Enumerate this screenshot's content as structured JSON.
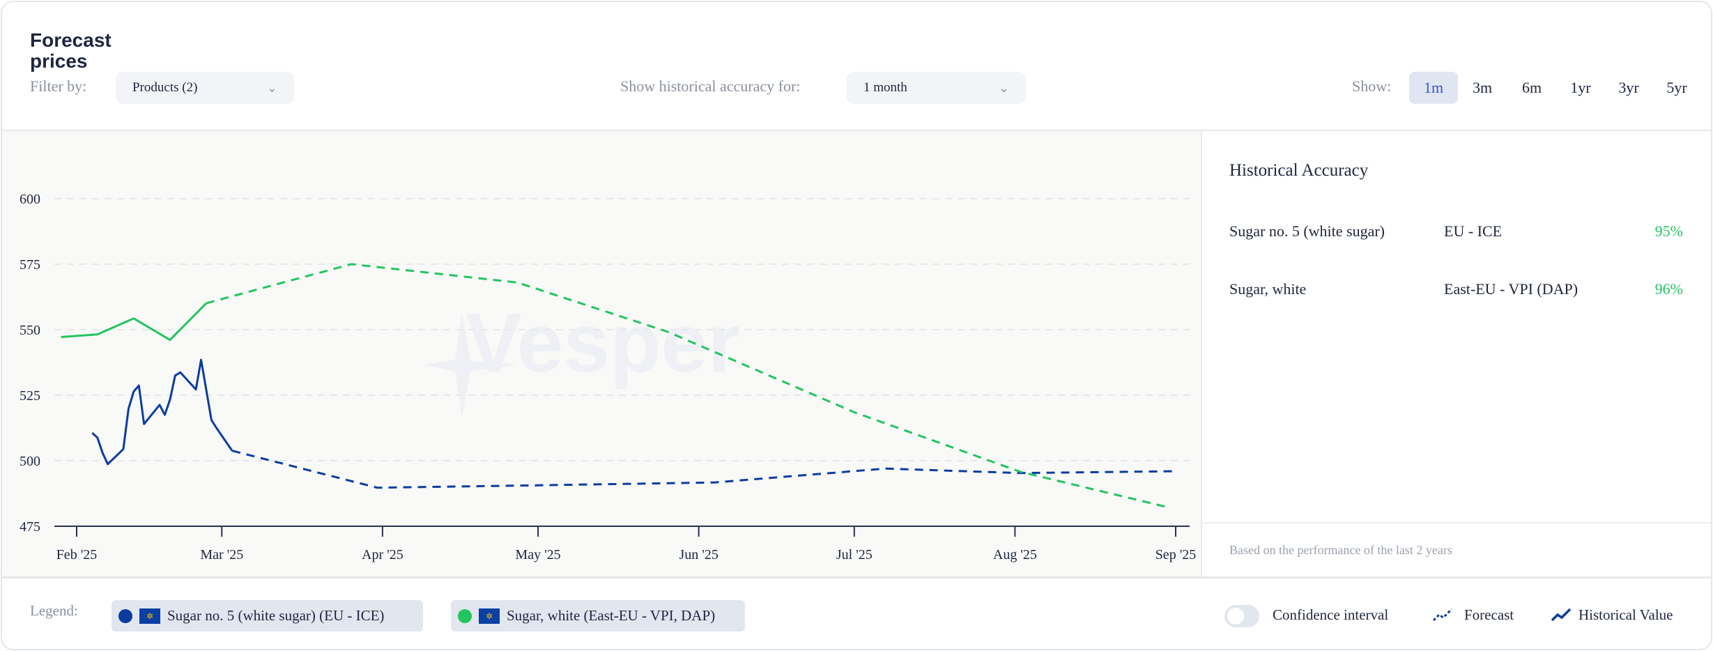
{
  "header": {
    "title": "Forecast prices",
    "filter_label": "Filter by:",
    "filter_value": "Products (2)",
    "accuracy_label": "Show historical accuracy for:",
    "accuracy_value": "1 month",
    "show_label": "Show:",
    "ranges": [
      {
        "label": "1m",
        "active": true
      },
      {
        "label": "3m",
        "active": false
      },
      {
        "label": "6m",
        "active": false
      },
      {
        "label": "1yr",
        "active": false
      },
      {
        "label": "3yr",
        "active": false
      },
      {
        "label": "5yr",
        "active": false
      }
    ]
  },
  "accuracy_panel": {
    "title": "Historical Accuracy",
    "rows": [
      {
        "product": "Sugar no. 5 (white sugar)",
        "market": "EU - ICE",
        "accuracy": "95%"
      },
      {
        "product": "Sugar, white",
        "market": "East-EU - VPI (DAP)",
        "accuracy": "96%"
      }
    ],
    "footnote": "Based on the performance of the last 2 years"
  },
  "legend": {
    "label": "Legend:",
    "items": [
      {
        "label": "Sugar no. 5 (white sugar) (EU - ICE)",
        "color": "#0a3d9e"
      },
      {
        "label": "Sugar, white (East-EU - VPI, DAP)",
        "color": "#22c55e"
      }
    ],
    "confidence_label": "Confidence interval",
    "confidence_on": false,
    "forecast_label": "Forecast",
    "historical_label": "Historical Value"
  },
  "watermark": "Vesper",
  "chart_data": {
    "type": "line",
    "x_unit": "days since 2025-02-01",
    "xlim": [
      0,
      212
    ],
    "ylim": [
      475,
      600
    ],
    "yticks": [
      "600",
      "575",
      "550",
      "525",
      "500",
      "475"
    ],
    "ytick_values": [
      600,
      575,
      550,
      525,
      500,
      475
    ],
    "xticks": [
      {
        "label": "Feb '25",
        "day": 0
      },
      {
        "label": "Mar '25",
        "day": 28
      },
      {
        "label": "Apr '25",
        "day": 59
      },
      {
        "label": "May '25",
        "day": 89
      },
      {
        "label": "Jun '25",
        "day": 120
      },
      {
        "label": "Jul '25",
        "day": 150
      },
      {
        "label": "Aug '25",
        "day": 181
      },
      {
        "label": "Sep '25",
        "day": 212
      }
    ],
    "grid": true,
    "series": [
      {
        "name": "Sugar no. 5 (white sugar) (EU - ICE)",
        "color": "#0a3d9e",
        "historical": [
          [
            3,
            510.6
          ],
          [
            4,
            508.8
          ],
          [
            5,
            503
          ],
          [
            6,
            498.7
          ],
          [
            9,
            504.4
          ],
          [
            10,
            519.8
          ],
          [
            11,
            526.4
          ],
          [
            12,
            528.7
          ],
          [
            13,
            514
          ],
          [
            16,
            521.3
          ],
          [
            17,
            517.5
          ],
          [
            18,
            523.3
          ],
          [
            19,
            532.5
          ],
          [
            20,
            533.7
          ],
          [
            23,
            527.2
          ],
          [
            24,
            538.5
          ],
          [
            26,
            515.5
          ],
          [
            27,
            512.4
          ],
          [
            30,
            503.8
          ]
        ],
        "forecast": [
          [
            30,
            503.8
          ],
          [
            58,
            489.7
          ],
          [
            85,
            490.5
          ],
          [
            123,
            491.7
          ],
          [
            156,
            497
          ],
          [
            182,
            495.3
          ],
          [
            212,
            496
          ]
        ]
      },
      {
        "name": "Sugar, white (East-EU - VPI, DAP)",
        "color": "#22c55e",
        "historical": [
          [
            -3,
            547.2
          ],
          [
            4,
            548.2
          ],
          [
            11,
            554.3
          ],
          [
            18,
            546.1
          ],
          [
            25,
            560.1
          ]
        ],
        "forecast": [
          [
            25,
            560.1
          ],
          [
            53,
            575
          ],
          [
            85,
            568
          ],
          [
            114,
            549.2
          ],
          [
            150,
            518.5
          ],
          [
            182,
            495.8
          ],
          [
            211,
            482
          ]
        ]
      }
    ]
  }
}
